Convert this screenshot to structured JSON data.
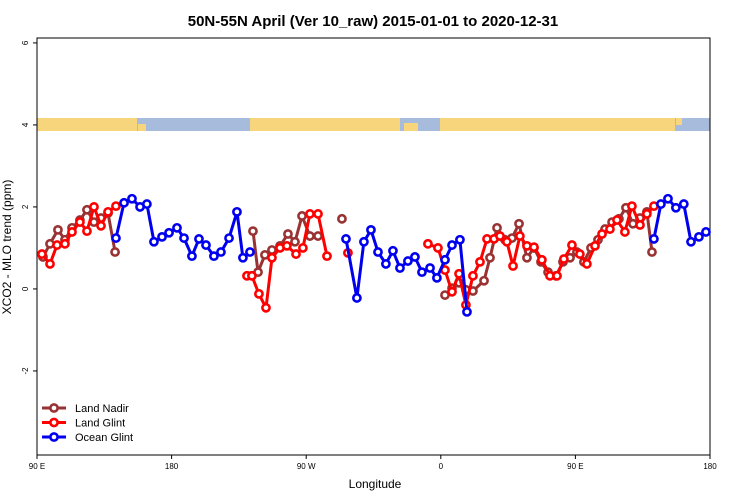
{
  "chart_data": {
    "type": "line",
    "title": "50N-55N April (Ver 10_raw)   2015-01-01 to 2020-12-31",
    "xlabel": "Longitude",
    "ylabel": "XCO2 - MLO trend (ppm)",
    "xlim": [
      90,
      540
    ],
    "xticks": [
      {
        "value": 90,
        "label": "90 E"
      },
      {
        "value": 180,
        "label": "180"
      },
      {
        "value": 270,
        "label": "90 W"
      },
      {
        "value": 360,
        "label": "0"
      },
      {
        "value": 450,
        "label": "90 E"
      },
      {
        "value": 540,
        "label": "180"
      }
    ],
    "ylim": [
      -4.05,
      6.12
    ],
    "yticks": [
      -2,
      0,
      2,
      4,
      6
    ],
    "legend": "bottom-left",
    "series": [
      {
        "name": "Land Nadir",
        "color": "#993333",
        "x": [
          94,
          98.7,
          104,
          108.7,
          113.4,
          118.7,
          123.4,
          128.1,
          132.8,
          137.5,
          142.2,
          null,
          234.4,
          237.8,
          242.4,
          247.1,
          252.5,
          257.8,
          262.5,
          267.2,
          272.5,
          277.9,
          null,
          293.9,
          null,
          362.8,
          367.5,
          372.2,
          376.8,
          381.5,
          388.9,
          392.9,
          397.6,
          402.9,
          407.6,
          412.3,
          417.6,
          422.3,
          427,
          431.7,
          437,
          441.7,
          446.4,
          451,
          455.7,
          460.4,
          465.1,
          469.8,
          474.5,
          479.1,
          483.8,
          488.5,
          493.2,
          497.8,
          501.2
        ],
        "values": [
          0.78,
          1.1,
          1.44,
          1.2,
          1.49,
          1.68,
          1.93,
          1.63,
          1.73,
          1.85,
          0.9,
          null,
          1.41,
          0.41,
          0.83,
          0.95,
          1.05,
          1.34,
          1.15,
          1.78,
          1.29,
          1.29,
          null,
          1.71,
          null,
          -0.15,
          0.02,
          0.15,
          -0.02,
          -0.05,
          0.2,
          0.76,
          1.49,
          1.2,
          1.24,
          1.59,
          0.76,
          1.0,
          0.66,
          0.41,
          0.32,
          0.66,
          0.76,
          0.9,
          0.66,
          1.0,
          1.2,
          1.46,
          1.63,
          1.71,
          1.98,
          1.59,
          1.73,
          1.88,
          0.9
        ]
      },
      {
        "name": "Land Glint",
        "color": "#ff0000",
        "x": [
          93.3,
          98.7,
          103.4,
          108.7,
          113.4,
          118.7,
          123.4,
          128.1,
          132.8,
          137.5,
          142.8,
          null,
          230.4,
          233.7,
          238.4,
          243.1,
          247.1,
          252.5,
          257.1,
          263.2,
          267.8,
          272.5,
          277.9,
          283.9,
          null,
          297.9,
          null,
          351.4,
          358.1,
          362.8,
          367.5,
          372.2,
          376.8,
          381.5,
          386.2,
          390.9,
          395.6,
          399.6,
          404.2,
          408.3,
          412.9,
          417.6,
          422.3,
          427.6,
          433,
          437.7,
          442.3,
          447.7,
          453,
          457.7,
          463.1,
          467.8,
          473.1,
          477.8,
          483.1,
          487.8,
          493.2,
          497.8,
          502.5
        ],
        "values": [
          0.85,
          0.61,
          1.07,
          1.1,
          1.39,
          1.63,
          1.41,
          2.0,
          1.54,
          1.88,
          2.02,
          null,
          0.32,
          0.32,
          -0.12,
          -0.46,
          0.76,
          1.0,
          1.05,
          0.85,
          1.0,
          1.83,
          1.83,
          0.8,
          null,
          0.88,
          null,
          1.1,
          1.0,
          0.46,
          -0.07,
          0.37,
          -0.39,
          0.32,
          0.66,
          1.22,
          1.22,
          1.29,
          1.15,
          0.56,
          1.29,
          1.05,
          1.02,
          0.71,
          0.32,
          0.32,
          0.73,
          1.07,
          0.85,
          0.61,
          1.05,
          1.34,
          1.46,
          1.68,
          1.39,
          2.02,
          1.56,
          1.83,
          2.02
        ]
      },
      {
        "name": "Ocean Glint",
        "color": "#0000ee",
        "x": [
          142.8,
          148.2,
          153.5,
          158.9,
          163.5,
          168.2,
          173.6,
          178.3,
          183.6,
          188.3,
          193.6,
          198.3,
          203,
          208.3,
          213,
          218.4,
          223.7,
          227.7,
          232.4,
          null,
          296.6,
          303.9,
          308.6,
          313.3,
          318,
          323.3,
          328,
          332.7,
          338,
          342.7,
          347.4,
          352.8,
          357.4,
          362.8,
          367.5,
          372.8,
          377.5,
          null,
          502.5,
          507.2,
          511.9,
          517.2,
          522.5,
          527.3,
          532.6,
          537.3
        ],
        "values": [
          1.24,
          2.1,
          2.2,
          2.0,
          2.07,
          1.15,
          1.27,
          1.37,
          1.49,
          1.24,
          0.8,
          1.22,
          1.07,
          0.8,
          0.9,
          1.24,
          1.88,
          0.76,
          0.9,
          null,
          1.22,
          -0.22,
          1.15,
          1.44,
          0.9,
          0.61,
          0.93,
          0.51,
          0.68,
          0.78,
          0.41,
          0.51,
          0.27,
          0.71,
          1.07,
          1.2,
          -0.56,
          null,
          1.22,
          2.07,
          2.2,
          1.98,
          2.07,
          1.15,
          1.27,
          1.39
        ]
      }
    ]
  }
}
